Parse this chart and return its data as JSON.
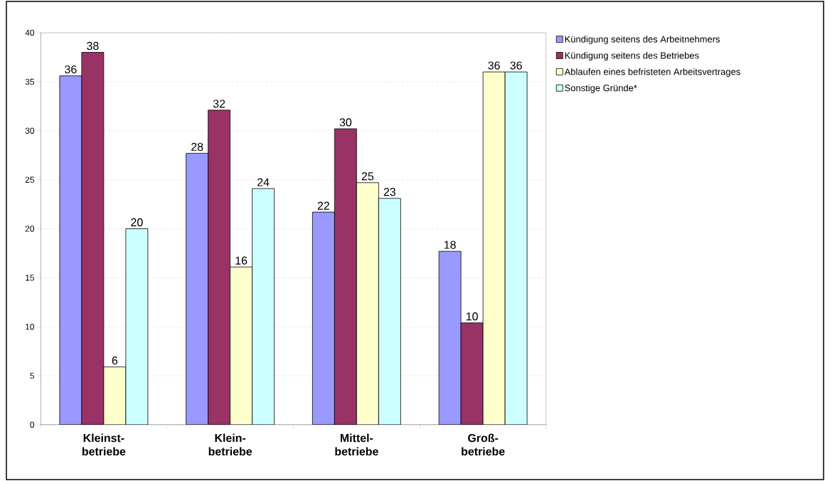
{
  "chart_data": {
    "type": "bar",
    "categories": [
      "Kleinst-betriebe",
      "Klein-betriebe",
      "Mittel-betriebe",
      "Groß-betriebe"
    ],
    "series": [
      {
        "name": "Kündigung seitens des Arbeitnehmers",
        "color": "#9999ff",
        "values": [
          35.6,
          27.7,
          21.7,
          17.7
        ],
        "value_labels": [
          "36",
          "28",
          "22",
          "18"
        ]
      },
      {
        "name": "Kündigung seitens des Betriebes",
        "color": "#993366",
        "values": [
          38.0,
          32.1,
          30.2,
          10.4
        ],
        "value_labels": [
          "38",
          "32",
          "30",
          "10"
        ]
      },
      {
        "name": "Ablaufen eines befristeten Arbeitsvertrages",
        "color": "#ffffcc",
        "values": [
          5.9,
          16.1,
          24.7,
          36.0
        ],
        "value_labels": [
          "6",
          "16",
          "25",
          "36"
        ]
      },
      {
        "name": "Sonstige Gründe*",
        "color": "#ccffff",
        "values": [
          20.0,
          24.1,
          23.1,
          36.0
        ],
        "value_labels": [
          "20",
          "24",
          "23",
          "36"
        ]
      }
    ],
    "ylim": [
      0,
      40
    ],
    "yticks": [
      0,
      5,
      10,
      15,
      20,
      25,
      30,
      35,
      40
    ],
    "grid": "y",
    "legend": "right"
  }
}
